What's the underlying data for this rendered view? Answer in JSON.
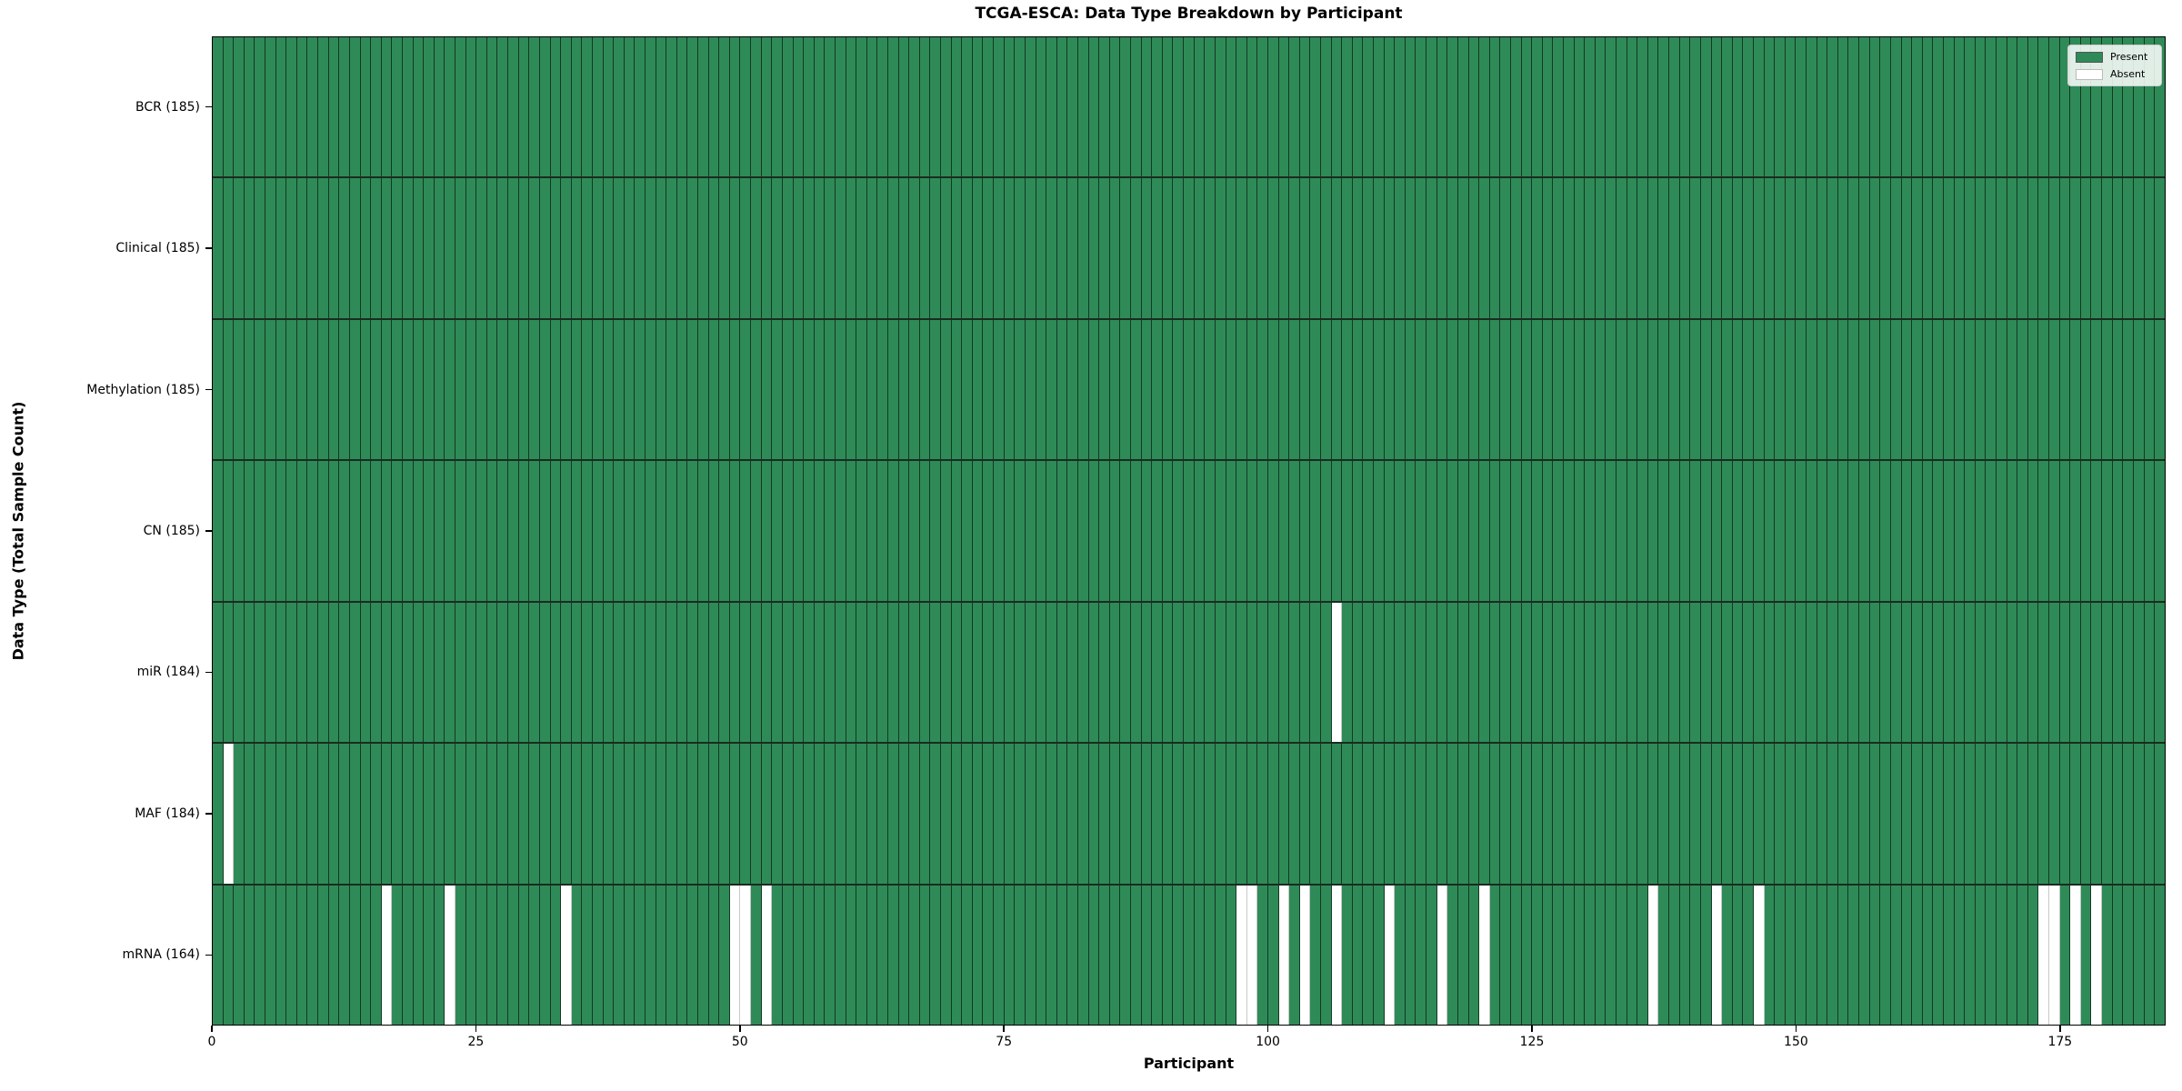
{
  "title": "TCGA-ESCA: Data Type Breakdown by Participant",
  "xlabel": "Participant",
  "ylabel": "Data Type (Total Sample Count)",
  "colors": {
    "present": "#2e8b57",
    "absent": "#ffffff",
    "bar_edge_present": "rgba(16,38,26,0.82)",
    "bar_edge_absent": "#c9c9c9",
    "row_divider": "#1b2b20",
    "spine": "#000000",
    "legend_border": "#cccccc"
  },
  "chart_data": {
    "type": "heatmap",
    "title": "TCGA-ESCA: Data Type Breakdown by Participant",
    "xlabel": "Participant",
    "ylabel": "Data Type (Total Sample Count)",
    "n_participants": 185,
    "x_range": [
      0,
      185
    ],
    "x_ticks": [
      0,
      25,
      50,
      75,
      100,
      125,
      150,
      175
    ],
    "grid": false,
    "legend_position": "upper right",
    "legend": [
      {
        "label": "Present",
        "color": "#2e8b57",
        "edge": "#555555"
      },
      {
        "label": "Absent",
        "color": "#ffffff",
        "edge": "#bbbbbb"
      }
    ],
    "rows": [
      {
        "label": "BCR (185)",
        "data_type": "BCR",
        "present_count": 185,
        "absent_participants": []
      },
      {
        "label": "Clinical (185)",
        "data_type": "Clinical",
        "present_count": 185,
        "absent_participants": []
      },
      {
        "label": "Methylation (185)",
        "data_type": "Methylation",
        "present_count": 185,
        "absent_participants": []
      },
      {
        "label": "CN (185)",
        "data_type": "CN",
        "present_count": 185,
        "absent_participants": []
      },
      {
        "label": "miR (184)",
        "data_type": "miR",
        "present_count": 184,
        "absent_participants": [
          106
        ]
      },
      {
        "label": "MAF (184)",
        "data_type": "MAF",
        "present_count": 184,
        "absent_participants": [
          1
        ]
      },
      {
        "label": "mRNA (164)",
        "data_type": "mRNA",
        "present_count": 164,
        "absent_participants": [
          16,
          22,
          33,
          49,
          50,
          52,
          97,
          98,
          101,
          103,
          106,
          111,
          116,
          120,
          136,
          142,
          146,
          173,
          174,
          176,
          178
        ]
      }
    ]
  }
}
